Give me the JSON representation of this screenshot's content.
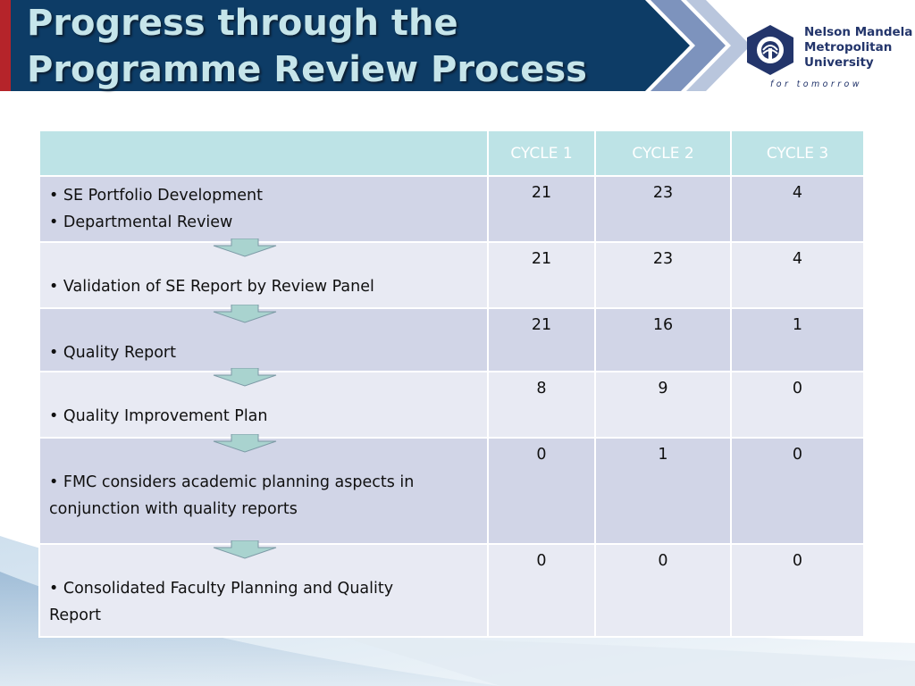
{
  "header": {
    "title_line1": "Progress through the",
    "title_line2": "Programme Review Process"
  },
  "logo": {
    "line1": "Nelson Mandela",
    "line2": "Metropolitan",
    "line3": "University",
    "tagline": "for tomorrow"
  },
  "colors": {
    "header_bg": "#0d3c66",
    "title_text": "#c6e5ea",
    "table_header_bg": "#bde3e6",
    "row_dark": "#d1d5e7",
    "row_light": "#e8eaf3",
    "accent_red": "#b5242a"
  },
  "table": {
    "columns": [
      "",
      "CYCLE 1",
      "CYCLE 2",
      "CYCLE 3"
    ],
    "rows": [
      {
        "lines": [
          "• SE Portfolio Development",
          "• Departmental Review"
        ],
        "c1": "21",
        "c2": "23",
        "c3": "4"
      },
      {
        "lines": [
          "• Validation of SE Report by Review Panel"
        ],
        "c1": "21",
        "c2": "23",
        "c3": "4"
      },
      {
        "lines": [
          "• Quality Report"
        ],
        "c1": "21",
        "c2": "16",
        "c3": "1"
      },
      {
        "lines": [
          "• Quality Improvement Plan"
        ],
        "c1": "8",
        "c2": "9",
        "c3": "0"
      },
      {
        "lines": [
          "• FMC considers academic planning aspects in",
          "conjunction with quality reports"
        ],
        "c1": "0",
        "c2": "1",
        "c3": "0"
      },
      {
        "lines": [
          "• Consolidated Faculty Planning and Quality",
          "Report"
        ],
        "c1": "0",
        "c2": "0",
        "c3": "0"
      }
    ]
  }
}
